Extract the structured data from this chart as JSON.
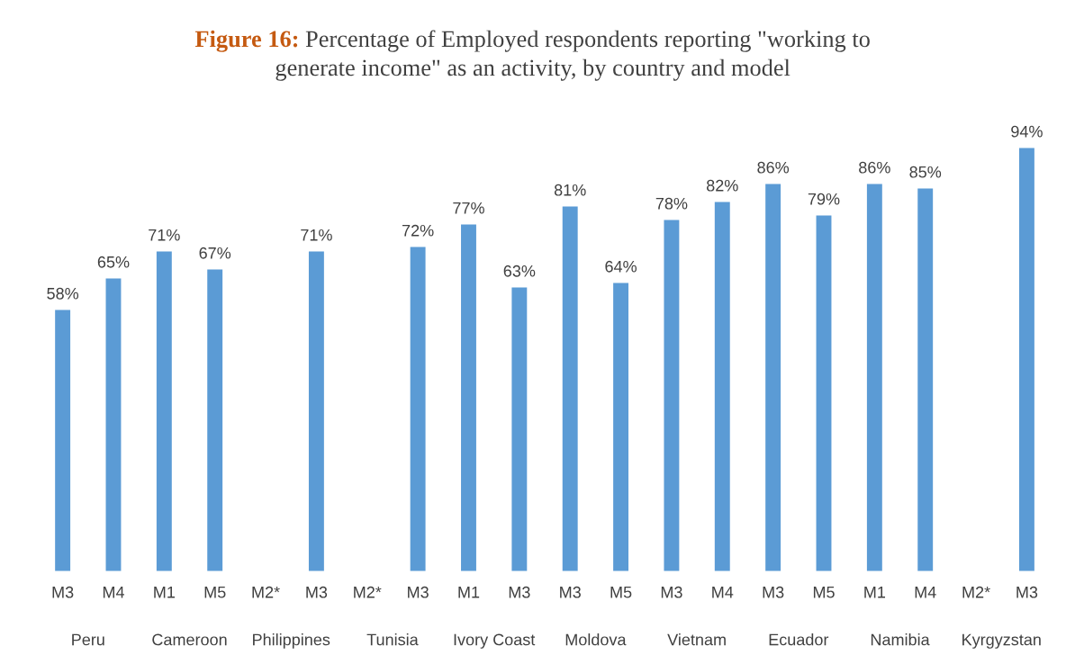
{
  "chart_data": {
    "type": "bar",
    "title": "Figure 16: Percentage of Employed respondents reporting \"working to generate income\" as an activity, by country and model",
    "categories": [
      "M3",
      "M4",
      "M1",
      "M5",
      "M2*",
      "M3",
      "M2*",
      "M3",
      "M1",
      "M3",
      "M3",
      "M5",
      "M3",
      "M4",
      "M3",
      "M5",
      "M1",
      "M4",
      "M2*",
      "M3"
    ],
    "values": [
      58,
      65,
      71,
      67,
      null,
      71,
      null,
      72,
      77,
      63,
      81,
      64,
      78,
      82,
      86,
      79,
      86,
      85,
      null,
      94
    ],
    "value_labels": [
      "58%",
      "65%",
      "71%",
      "67%",
      null,
      "71%",
      null,
      "72%",
      "77%",
      "63%",
      "81%",
      "64%",
      "78%",
      "82%",
      "86%",
      "79%",
      "86%",
      "85%",
      null,
      "94%"
    ],
    "color": "#5b9bd5",
    "annotations": [
      "Peru",
      "Cameroon",
      "Philippines",
      "Tunisia",
      "Ivory Coast",
      "Moldova",
      "Vietnam",
      "Ecuador",
      "Namibia",
      "Kyrgyzstan"
    ],
    "tick_labels": "x",
    "grid": false,
    "legend": false
  }
}
